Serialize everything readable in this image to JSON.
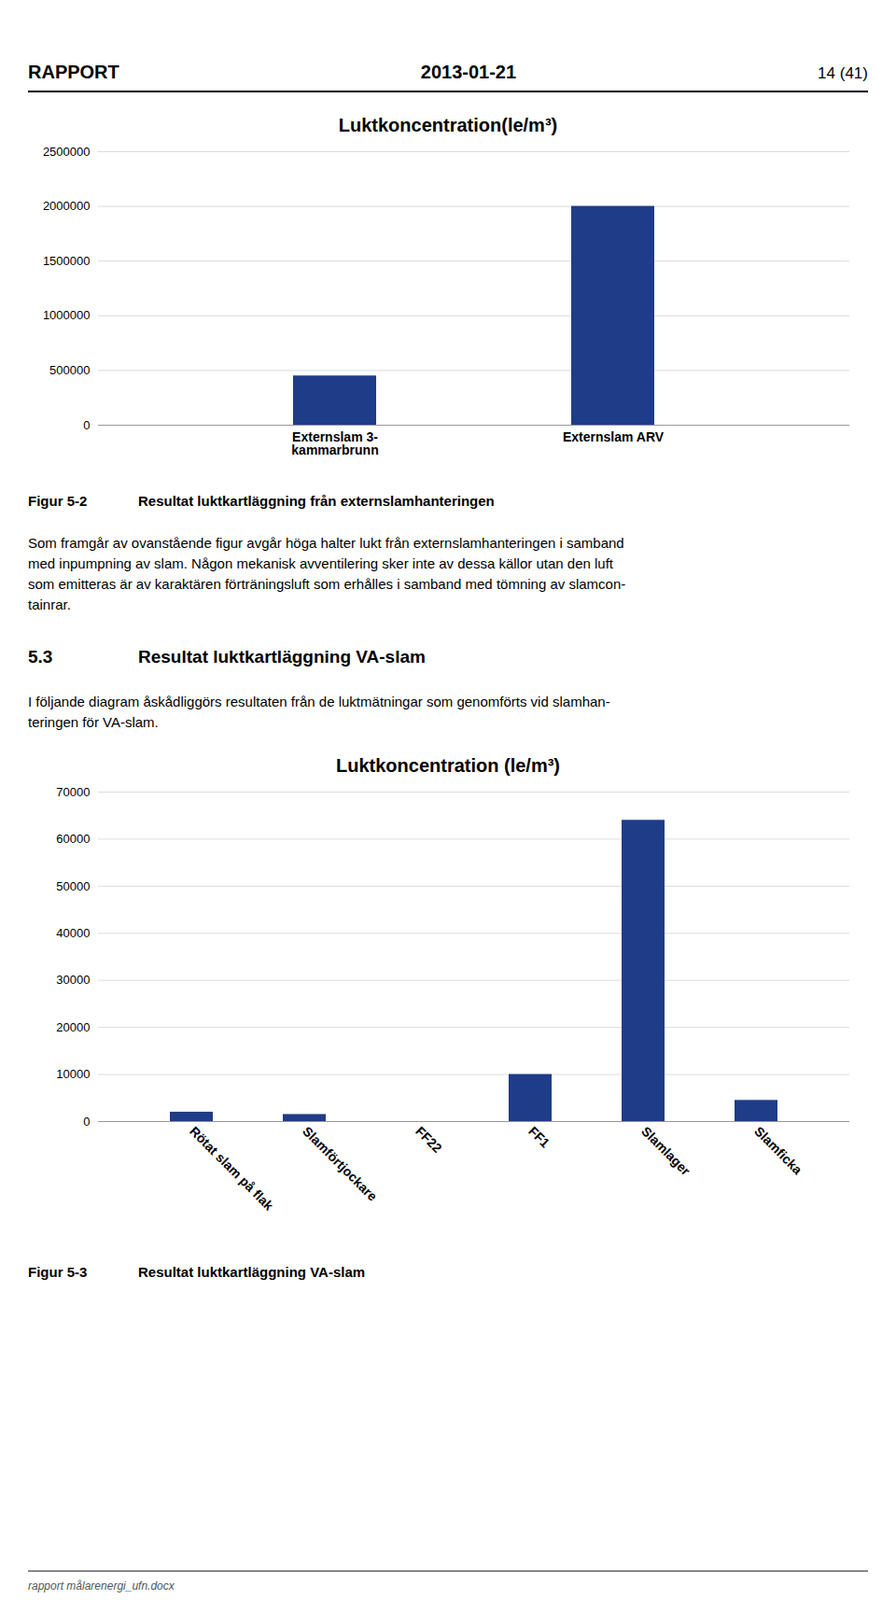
{
  "header": {
    "left": "RAPPORT",
    "center": "2013-01-21",
    "right": "14 (41)"
  },
  "chart_data": [
    {
      "type": "bar",
      "title": "Luktkoncentration(le/m³)",
      "categories": [
        "Externslam 3-\nkammarbrunn",
        "Externslam ARV"
      ],
      "values": [
        450000,
        2000000
      ],
      "color": "#1F3C88",
      "ylim": [
        0,
        2500000
      ],
      "yticks": [
        0,
        500000,
        1000000,
        1500000,
        2000000,
        2500000
      ],
      "grid": true
    },
    {
      "type": "bar",
      "title": "Luktkoncentration (le/m³)",
      "categories": [
        "Rötat slam på flak",
        "Slamförtjockare",
        "FF22",
        "FF1",
        "Slamlager",
        "Slamficka"
      ],
      "values": [
        2000,
        1500,
        0,
        10000,
        64000,
        4500
      ],
      "color": "#1F3C88",
      "ylim": [
        0,
        70000
      ],
      "yticks": [
        0,
        10000,
        20000,
        30000,
        40000,
        50000,
        60000,
        70000
      ],
      "grid": true
    }
  ],
  "captions": [
    {
      "label": "Figur 5-2",
      "text": "Resultat luktkartläggning från externslamhanteringen"
    },
    {
      "label": "Figur 5-3",
      "text": "Resultat luktkartläggning VA-slam"
    }
  ],
  "body_text": [
    "Som framgår av ovanstående figur avgår höga halter lukt från externslamhanteringen i samband",
    "med inpumpning av slam. Någon mekanisk avventilering sker inte av dessa källor utan den luft",
    "som emitteras är av karaktären förträningsluft som erhålles i samband med tömning av slamcon-",
    "tainrar."
  ],
  "section": {
    "number": "5.3",
    "title": "Resultat luktkartläggning VA-slam",
    "text": [
      "I följande diagram åskådliggörs resultaten från de luktmätningar som genomförts vid slamhan-",
      "teringen för VA-slam."
    ]
  },
  "footer": "rapport målarenergi_ufn.docx"
}
